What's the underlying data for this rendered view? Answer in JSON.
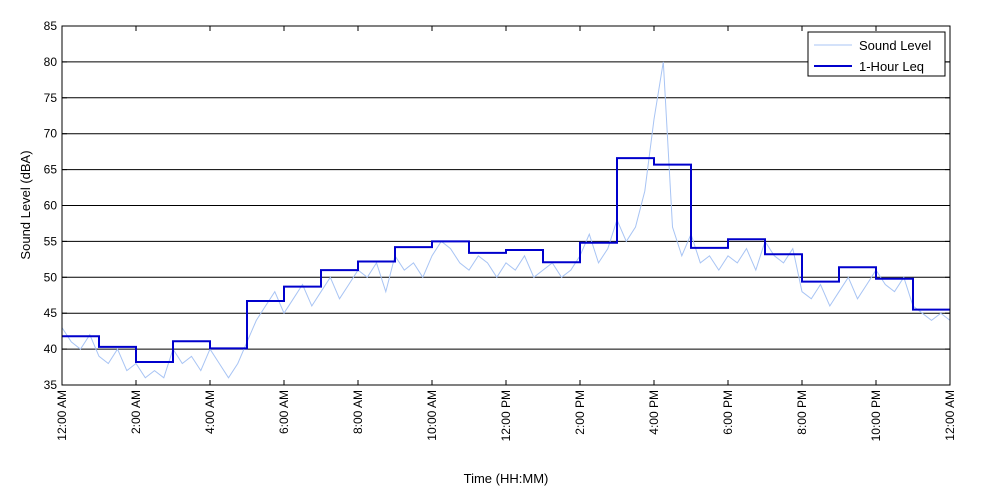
{
  "chart_data": {
    "type": "line",
    "title": "",
    "xlabel": "Time (HH:MM)",
    "ylabel": "Sound Level (dBA)",
    "xlim": [
      0,
      24
    ],
    "ylim": [
      35,
      85
    ],
    "y_ticks": [
      35,
      40,
      45,
      50,
      55,
      60,
      65,
      70,
      75,
      80,
      85
    ],
    "x_ticks": [
      {
        "hour": 0,
        "label": "12:00 AM"
      },
      {
        "hour": 2,
        "label": "2:00 AM"
      },
      {
        "hour": 4,
        "label": "4:00 AM"
      },
      {
        "hour": 6,
        "label": "6:00 AM"
      },
      {
        "hour": 8,
        "label": "8:00 AM"
      },
      {
        "hour": 10,
        "label": "10:00 AM"
      },
      {
        "hour": 12,
        "label": "12:00 PM"
      },
      {
        "hour": 14,
        "label": "2:00 PM"
      },
      {
        "hour": 16,
        "label": "4:00 PM"
      },
      {
        "hour": 18,
        "label": "6:00 PM"
      },
      {
        "hour": 20,
        "label": "8:00 PM"
      },
      {
        "hour": 22,
        "label": "10:00 PM"
      },
      {
        "hour": 24,
        "label": "12:00 AM"
      }
    ],
    "grid": "horizontal",
    "legend_position": "top-right",
    "series": [
      {
        "name": "Sound Level",
        "color": "#a8c4f4",
        "style": "thin-line",
        "x": [
          0,
          0.25,
          0.5,
          0.75,
          1,
          1.25,
          1.5,
          1.75,
          2,
          2.25,
          2.5,
          2.75,
          3,
          3.25,
          3.5,
          3.75,
          4,
          4.25,
          4.5,
          4.75,
          5,
          5.25,
          5.5,
          5.75,
          6,
          6.25,
          6.5,
          6.75,
          7,
          7.25,
          7.5,
          7.75,
          8,
          8.25,
          8.5,
          8.75,
          9,
          9.25,
          9.5,
          9.75,
          10,
          10.25,
          10.5,
          10.75,
          11,
          11.25,
          11.5,
          11.75,
          12,
          12.25,
          12.5,
          12.75,
          13,
          13.25,
          13.5,
          13.75,
          14,
          14.25,
          14.5,
          14.75,
          15,
          15.25,
          15.5,
          15.75,
          16,
          16.25,
          16.5,
          16.75,
          17,
          17.25,
          17.5,
          17.75,
          18,
          18.25,
          18.5,
          18.75,
          19,
          19.25,
          19.5,
          19.75,
          20,
          20.25,
          20.5,
          20.75,
          21,
          21.25,
          21.5,
          21.75,
          22,
          22.25,
          22.5,
          22.75,
          23,
          23.25,
          23.5,
          23.75,
          24
        ],
        "values": [
          43,
          41,
          40,
          42,
          39,
          38,
          40,
          37,
          38,
          36,
          37,
          36,
          40,
          38,
          39,
          37,
          40,
          38,
          36,
          38,
          41,
          44,
          46,
          48,
          45,
          47,
          49,
          46,
          48,
          50,
          47,
          49,
          51,
          50,
          52,
          48,
          53,
          51,
          52,
          50,
          53,
          55,
          54,
          52,
          51,
          53,
          52,
          50,
          52,
          51,
          53,
          50,
          51,
          52,
          50,
          51,
          53,
          56,
          52,
          54,
          58,
          55,
          57,
          62,
          72,
          80,
          57,
          53,
          56,
          52,
          53,
          51,
          53,
          52,
          54,
          51,
          55,
          53,
          52,
          54,
          48,
          47,
          49,
          46,
          48,
          50,
          47,
          49,
          51,
          49,
          48,
          50,
          46,
          45,
          44,
          45,
          44
        ]
      },
      {
        "name": "1-Hour Leq",
        "color": "#0000cc",
        "style": "step",
        "hours": [
          0,
          1,
          2,
          3,
          4,
          5,
          6,
          7,
          8,
          9,
          10,
          11,
          12,
          13,
          14,
          15,
          16,
          17,
          18,
          19,
          20,
          21,
          22,
          23
        ],
        "values": [
          41.8,
          40.3,
          38.2,
          41.1,
          40.1,
          46.7,
          48.7,
          51.0,
          52.2,
          54.2,
          55.0,
          53.4,
          53.8,
          52.1,
          54.8,
          66.6,
          65.7,
          54.1,
          55.3,
          53.2,
          49.4,
          51.4,
          49.8,
          45.5
        ]
      }
    ]
  }
}
